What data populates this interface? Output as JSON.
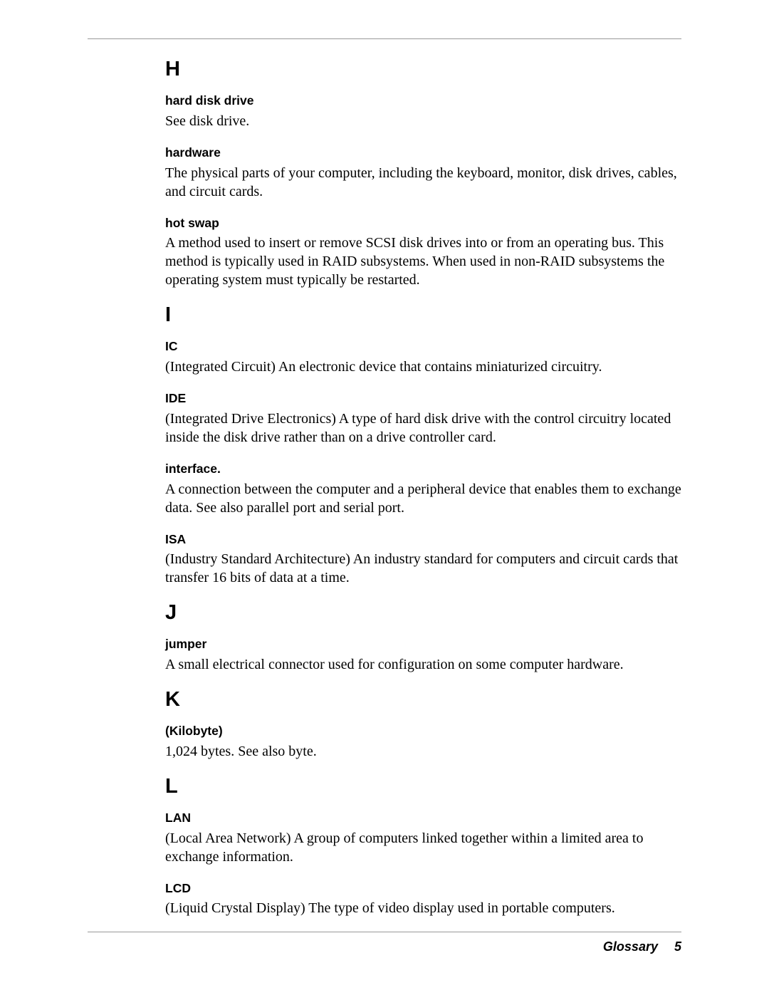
{
  "footer": {
    "section_name": "Glossary",
    "page_number": "5"
  },
  "sections": {
    "H": {
      "letter": "H",
      "entries": {
        "hard_disk_drive": {
          "term": "hard disk drive",
          "definition": "See disk drive."
        },
        "hardware": {
          "term": "hardware",
          "definition": "The physical parts of your computer, including the keyboard, monitor, disk drives, cables, and circuit cards."
        },
        "hot_swap": {
          "term": "hot swap",
          "definition": "A method used to insert or remove SCSI disk drives into or from an operating bus. This method is typically used in RAID subsystems. When used in non-RAID subsystems the operating system must typically be restarted."
        }
      }
    },
    "I": {
      "letter": "I",
      "entries": {
        "ic": {
          "term": "IC",
          "definition": "(Integrated Circuit) An electronic device that contains miniaturized circuitry."
        },
        "ide": {
          "term": "IDE",
          "definition": "(Integrated Drive Electronics) A type of hard disk drive with the control circuitry located inside the disk drive rather than on a drive controller card."
        },
        "interface": {
          "term": "interface.",
          "definition": "A connection between the computer and a peripheral device that enables them to exchange data. See also parallel port and serial port."
        },
        "isa": {
          "term": "ISA",
          "definition": "(Industry Standard Architecture) An industry standard for computers and circuit cards that transfer 16 bits of data at a time."
        }
      }
    },
    "J": {
      "letter": "J",
      "entries": {
        "jumper": {
          "term": "jumper",
          "definition": "A small electrical connector used for configuration on some computer hardware."
        }
      }
    },
    "K": {
      "letter": "K",
      "entries": {
        "kilobyte": {
          "term": "(Kilobyte)",
          "definition": "1,024 bytes. See also byte."
        }
      }
    },
    "L": {
      "letter": "L",
      "entries": {
        "lan": {
          "term": "LAN",
          "definition": "(Local Area Network) A group of computers linked together within a limited area to exchange information."
        },
        "lcd": {
          "term": "LCD",
          "definition": "(Liquid Crystal Display) The type of video display used in portable computers."
        }
      }
    }
  },
  "style": {
    "page_bg": "#ffffff",
    "rule_color": "#999999",
    "text_color": "#000000",
    "term_font": "Arial",
    "term_fontsize": 17.5,
    "term_weight": "bold",
    "definition_font": "Times New Roman",
    "definition_fontsize": 20,
    "section_letter_fontsize": 29,
    "footer_fontsize": 18
  }
}
